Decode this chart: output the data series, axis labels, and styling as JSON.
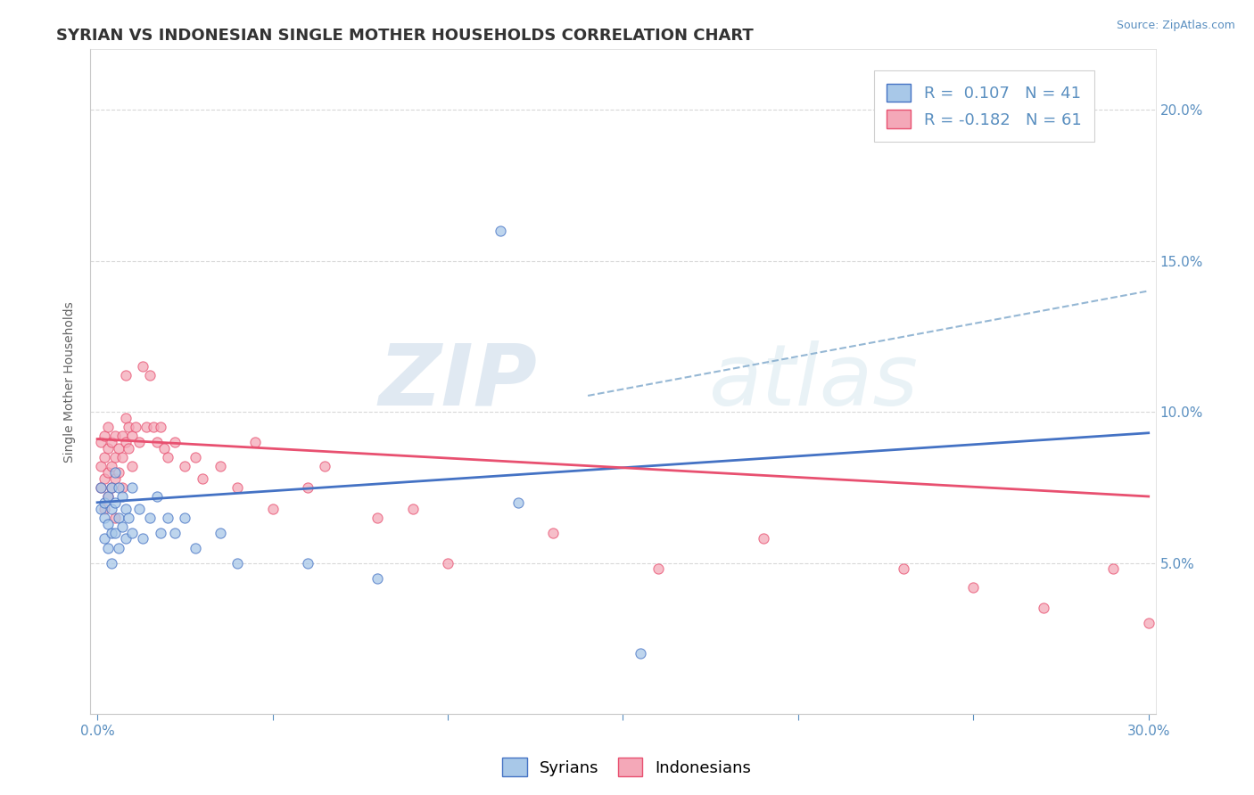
{
  "title": "SYRIAN VS INDONESIAN SINGLE MOTHER HOUSEHOLDS CORRELATION CHART",
  "source": "Source: ZipAtlas.com",
  "ylabel": "Single Mother Households",
  "xlim": [
    0.0,
    0.3
  ],
  "ylim": [
    0.0,
    0.22
  ],
  "syrian_color": "#a8c8e8",
  "indonesian_color": "#f4a8b8",
  "syrian_line_color": "#4472c4",
  "indonesian_line_color": "#e85070",
  "dashed_line_color": "#8ab0d0",
  "R_syrian": 0.107,
  "N_syrian": 41,
  "R_indonesian": -0.182,
  "N_indonesian": 61,
  "watermark_zip": "ZIP",
  "watermark_atlas": "atlas",
  "legend_label_syrian": "Syrians",
  "legend_label_indonesian": "Indonesians",
  "background_color": "#ffffff",
  "grid_color": "#d8d8d8",
  "title_fontsize": 13,
  "tick_fontsize": 11,
  "legend_fontsize": 13,
  "syrian_pts": [
    [
      0.001,
      0.075
    ],
    [
      0.001,
      0.068
    ],
    [
      0.002,
      0.07
    ],
    [
      0.002,
      0.065
    ],
    [
      0.002,
      0.058
    ],
    [
      0.003,
      0.072
    ],
    [
      0.003,
      0.063
    ],
    [
      0.003,
      0.055
    ],
    [
      0.004,
      0.075
    ],
    [
      0.004,
      0.068
    ],
    [
      0.004,
      0.06
    ],
    [
      0.004,
      0.05
    ],
    [
      0.005,
      0.08
    ],
    [
      0.005,
      0.07
    ],
    [
      0.005,
      0.06
    ],
    [
      0.006,
      0.075
    ],
    [
      0.006,
      0.065
    ],
    [
      0.006,
      0.055
    ],
    [
      0.007,
      0.072
    ],
    [
      0.007,
      0.062
    ],
    [
      0.008,
      0.068
    ],
    [
      0.008,
      0.058
    ],
    [
      0.009,
      0.065
    ],
    [
      0.01,
      0.075
    ],
    [
      0.01,
      0.06
    ],
    [
      0.012,
      0.068
    ],
    [
      0.013,
      0.058
    ],
    [
      0.015,
      0.065
    ],
    [
      0.017,
      0.072
    ],
    [
      0.018,
      0.06
    ],
    [
      0.02,
      0.065
    ],
    [
      0.022,
      0.06
    ],
    [
      0.025,
      0.065
    ],
    [
      0.028,
      0.055
    ],
    [
      0.035,
      0.06
    ],
    [
      0.04,
      0.05
    ],
    [
      0.06,
      0.05
    ],
    [
      0.08,
      0.045
    ],
    [
      0.115,
      0.16
    ],
    [
      0.12,
      0.07
    ],
    [
      0.155,
      0.02
    ]
  ],
  "indonesian_pts": [
    [
      0.001,
      0.09
    ],
    [
      0.001,
      0.082
    ],
    [
      0.001,
      0.075
    ],
    [
      0.002,
      0.092
    ],
    [
      0.002,
      0.085
    ],
    [
      0.002,
      0.078
    ],
    [
      0.002,
      0.068
    ],
    [
      0.003,
      0.095
    ],
    [
      0.003,
      0.088
    ],
    [
      0.003,
      0.08
    ],
    [
      0.003,
      0.072
    ],
    [
      0.004,
      0.09
    ],
    [
      0.004,
      0.082
    ],
    [
      0.004,
      0.075
    ],
    [
      0.005,
      0.092
    ],
    [
      0.005,
      0.085
    ],
    [
      0.005,
      0.078
    ],
    [
      0.005,
      0.065
    ],
    [
      0.006,
      0.088
    ],
    [
      0.006,
      0.08
    ],
    [
      0.007,
      0.092
    ],
    [
      0.007,
      0.085
    ],
    [
      0.007,
      0.075
    ],
    [
      0.008,
      0.112
    ],
    [
      0.008,
      0.098
    ],
    [
      0.008,
      0.09
    ],
    [
      0.009,
      0.095
    ],
    [
      0.009,
      0.088
    ],
    [
      0.01,
      0.092
    ],
    [
      0.01,
      0.082
    ],
    [
      0.011,
      0.095
    ],
    [
      0.012,
      0.09
    ],
    [
      0.013,
      0.115
    ],
    [
      0.014,
      0.095
    ],
    [
      0.015,
      0.112
    ],
    [
      0.016,
      0.095
    ],
    [
      0.017,
      0.09
    ],
    [
      0.018,
      0.095
    ],
    [
      0.019,
      0.088
    ],
    [
      0.02,
      0.085
    ],
    [
      0.022,
      0.09
    ],
    [
      0.025,
      0.082
    ],
    [
      0.028,
      0.085
    ],
    [
      0.03,
      0.078
    ],
    [
      0.035,
      0.082
    ],
    [
      0.04,
      0.075
    ],
    [
      0.045,
      0.09
    ],
    [
      0.05,
      0.068
    ],
    [
      0.06,
      0.075
    ],
    [
      0.065,
      0.082
    ],
    [
      0.08,
      0.065
    ],
    [
      0.09,
      0.068
    ],
    [
      0.1,
      0.05
    ],
    [
      0.13,
      0.06
    ],
    [
      0.16,
      0.048
    ],
    [
      0.19,
      0.058
    ],
    [
      0.23,
      0.048
    ],
    [
      0.25,
      0.042
    ],
    [
      0.27,
      0.035
    ],
    [
      0.29,
      0.048
    ],
    [
      0.3,
      0.03
    ]
  ]
}
